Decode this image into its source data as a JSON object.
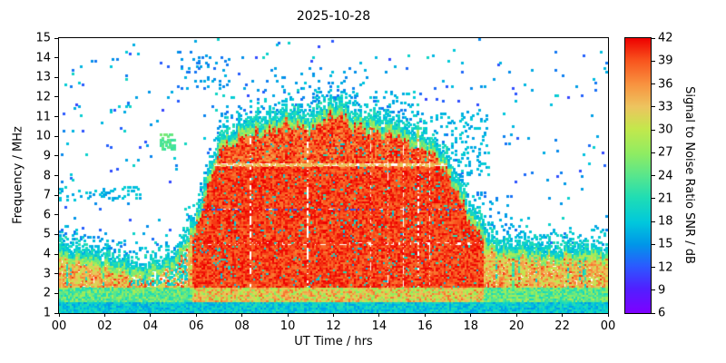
{
  "chart_data": {
    "type": "heatmap",
    "title": "2025-10-28",
    "xlabel": "UT Time / hrs",
    "ylabel": "Frequency / MHz",
    "xlim": [
      0,
      24
    ],
    "ylim": [
      1,
      15
    ],
    "grid": false,
    "x_ticks": [
      "00",
      "02",
      "04",
      "06",
      "08",
      "10",
      "12",
      "14",
      "16",
      "18",
      "20",
      "22",
      "00"
    ],
    "y_ticks": [
      "1",
      "2",
      "3",
      "4",
      "5",
      "6",
      "7",
      "8",
      "9",
      "10",
      "11",
      "12",
      "13",
      "14",
      "15"
    ],
    "colorbar": {
      "label": "Signal to Noise Ratio SNR / dB",
      "min": 6,
      "max": 42,
      "ticks": [
        "6",
        "9",
        "12",
        "15",
        "18",
        "21",
        "24",
        "27",
        "30",
        "33",
        "36",
        "39",
        "42"
      ],
      "stops": [
        [
          0.0,
          "#7E00FF"
        ],
        [
          0.09,
          "#5020FF"
        ],
        [
          0.17,
          "#2B59FF"
        ],
        [
          0.25,
          "#0096E8"
        ],
        [
          0.33,
          "#00C8DC"
        ],
        [
          0.42,
          "#1FDDB4"
        ],
        [
          0.5,
          "#58E68C"
        ],
        [
          0.58,
          "#8FEC62"
        ],
        [
          0.67,
          "#C3E84C"
        ],
        [
          0.75,
          "#EDC45F"
        ],
        [
          0.83,
          "#F89440"
        ],
        [
          0.92,
          "#F8531D"
        ],
        [
          1.0,
          "#EE0000"
        ]
      ]
    },
    "envelope": {
      "description": "Approximate maximum observed frequency (MHz) vs UT hour",
      "hours": [
        0,
        1,
        2,
        3,
        4,
        5,
        6,
        7,
        8,
        9,
        10,
        11,
        12,
        13,
        14,
        15,
        16,
        17,
        18,
        19,
        20,
        21,
        22,
        23,
        24
      ],
      "values": [
        4.3,
        4.1,
        3.8,
        3.5,
        3.4,
        3.8,
        5.8,
        9.8,
        10.6,
        10.7,
        11.2,
        10.8,
        11.7,
        11.1,
        10.7,
        10.4,
        10.0,
        8.8,
        6.2,
        4.6,
        4.3,
        4.2,
        4.2,
        4.3,
        4.3
      ]
    },
    "base_band_mhz": [
      1.0,
      4.3
    ],
    "daytime_hours": [
      5.8,
      18.6
    ],
    "features": {
      "interference_lines_mhz": [
        4.55,
        6.28,
        8.55
      ],
      "speckle_regions": [
        {
          "t0": 0.0,
          "t1": 3.6,
          "f0": 6.7,
          "f1": 7.4,
          "p": 0.15,
          "snr": 17
        },
        {
          "t0": 4.4,
          "t1": 5.1,
          "f0": 9.3,
          "f1": 10.1,
          "p": 0.55,
          "snr": 24
        },
        {
          "t0": 5.2,
          "t1": 7.6,
          "f0": 12.4,
          "f1": 14.3,
          "p": 0.1,
          "snr": 15
        },
        {
          "t0": 8.4,
          "t1": 13.6,
          "f0": 12.3,
          "f1": 13.5,
          "p": 0.05,
          "snr": 16
        },
        {
          "t0": 9.4,
          "t1": 15.6,
          "f0": 11.3,
          "f1": 12.3,
          "p": 0.09,
          "snr": 17
        },
        {
          "t0": 16.2,
          "t1": 18.8,
          "f0": 8.0,
          "f1": 11.2,
          "p": 0.14,
          "snr": 17
        },
        {
          "t0": 18.2,
          "t1": 19.8,
          "f0": 4.6,
          "f1": 7.2,
          "p": 0.1,
          "snr": 15
        },
        {
          "t0": 0.0,
          "t1": 2.2,
          "f0": 4.3,
          "f1": 5.3,
          "p": 0.1,
          "snr": 14
        },
        {
          "t0": 19.4,
          "t1": 24.0,
          "f0": 4.3,
          "f1": 5.0,
          "p": 0.1,
          "snr": 14
        }
      ]
    }
  }
}
